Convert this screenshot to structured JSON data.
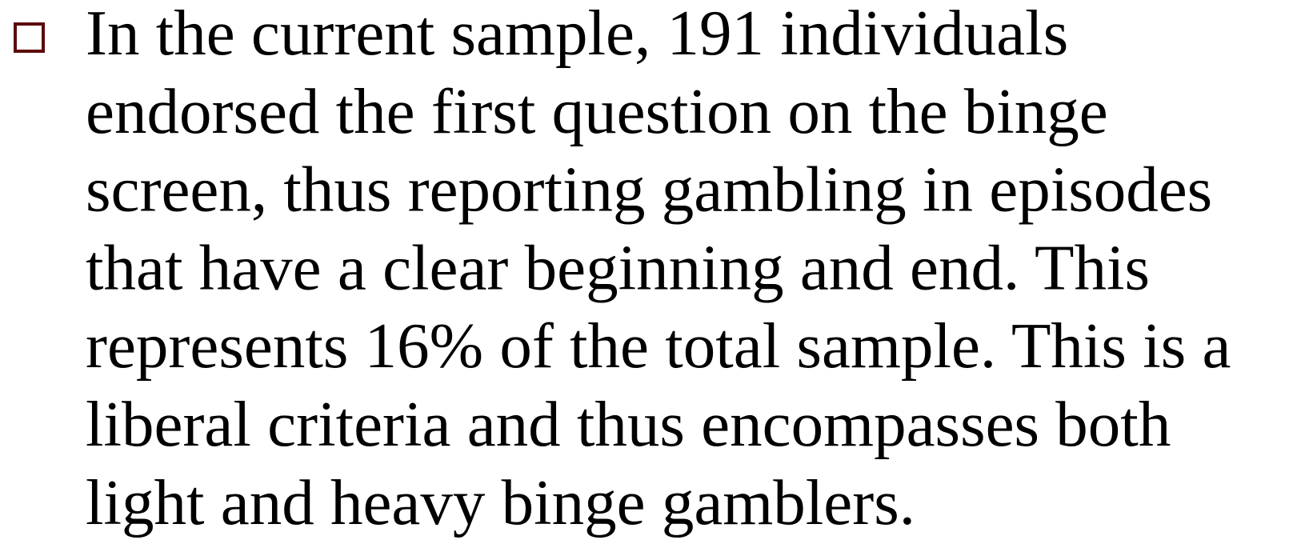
{
  "bullets": [
    {
      "lines": [
        "In the current sample, 191 individuals",
        "endorsed the first question on the binge",
        "screen, thus reporting gambling in episodes",
        "that have a clear beginning and end. This",
        "represents 16% of the total sample. This is a",
        "liberal criteria and thus encompasses both",
        "light and heavy binge gamblers."
      ]
    }
  ]
}
